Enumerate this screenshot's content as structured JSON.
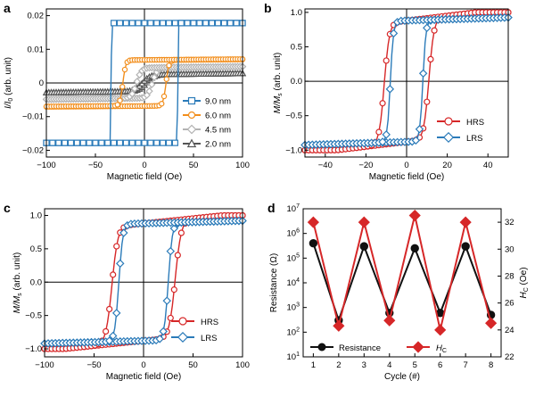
{
  "chart_data": [
    {
      "panel": "a",
      "type": "line",
      "xlabel": "Magnetic field (Oe)",
      "ylabel_main": "I/I",
      "ylabel_sub": "0",
      "ylabel_unit": " (arb. unit)",
      "xlim": [
        -100,
        100
      ],
      "ylim": [
        -0.022,
        0.022
      ],
      "xticks": [
        -100,
        -50,
        0,
        50,
        100
      ],
      "yticks": [
        -0.02,
        -0.01,
        0,
        0.01,
        0.02
      ],
      "ytick_labels": [
        "−0.02",
        "−0.01",
        "0",
        "0.01",
        "0.02"
      ],
      "zero_lines": true,
      "legend_position": "bottom-right",
      "series": [
        {
          "name": "9.0 nm",
          "color": "#2b7bb9",
          "marker": "square",
          "hc": 34,
          "sat": 0.0178,
          "shape": "square",
          "width": 0.5
        },
        {
          "name": "6.0 nm",
          "color": "#f28e1c",
          "marker": "circle",
          "hc": 22,
          "sat": 0.0068,
          "shape": "soft",
          "width": 3
        },
        {
          "name": "4.5 nm",
          "color": "#b3b3b3",
          "marker": "diamond",
          "hc": 8,
          "sat": 0.0045,
          "shape": "soft",
          "width": 5
        },
        {
          "name": "2.0 nm",
          "color": "#555555",
          "marker": "triangle",
          "hc": 2,
          "sat": 0.0025,
          "shape": "soft",
          "width": 8
        }
      ]
    },
    {
      "panel": "b",
      "type": "line",
      "xlabel": "Magnetic field (Oe)",
      "ylabel_main": "M/M",
      "ylabel_sub": "s",
      "ylabel_unit": " (arb. unit)",
      "xlim": [
        -50,
        50
      ],
      "ylim": [
        -1.1,
        1.05
      ],
      "xticks": [
        -40,
        -20,
        0,
        20,
        40
      ],
      "yticks": [
        -1.0,
        -0.5,
        0.0,
        0.5,
        1.0
      ],
      "ytick_labels": [
        "−1.0",
        "−0.5",
        "0.0",
        "0.5",
        "1.0"
      ],
      "zero_lines": true,
      "legend_position": "bottom-right",
      "series": [
        {
          "name": "HRS",
          "color": "#d62728",
          "marker": "circle",
          "hc": 11,
          "width": 2.5,
          "slope": 0.0035
        },
        {
          "name": "LRS",
          "color": "#2b7bb9",
          "marker": "diamond",
          "hc": 8,
          "width": 1.5,
          "slope": 0.0009
        }
      ]
    },
    {
      "panel": "c",
      "type": "line",
      "xlabel": "Magnetic field (Oe)",
      "ylabel_main": "M/M",
      "ylabel_sub": "s",
      "ylabel_unit": " (arb. unit)",
      "xlim": [
        -100,
        100
      ],
      "ylim": [
        -1.12,
        1.1
      ],
      "xticks": [
        -100,
        -50,
        0,
        50,
        100
      ],
      "yticks": [
        -1.0,
        -0.5,
        0.0,
        0.5,
        1.0
      ],
      "ytick_labels": [
        "−1.0",
        "−0.5",
        "0.0",
        "0.5",
        "1.0"
      ],
      "zero_lines": true,
      "legend_position": "bottom-right",
      "series": [
        {
          "name": "HRS",
          "color": "#d62728",
          "marker": "circle",
          "hc": 32,
          "width": 6,
          "slope": 0.0015
        },
        {
          "name": "LRS",
          "color": "#2b7bb9",
          "marker": "diamond",
          "hc": 25,
          "width": 4,
          "slope": 0.0004
        }
      ]
    },
    {
      "panel": "d",
      "type": "line",
      "xlabel": "Cycle (#)",
      "ylabel_left": "Resistance (Ω)",
      "ylabel_right_main": "H",
      "ylabel_right_sub": "C",
      "ylabel_right_unit": " (Oe)",
      "xlim": [
        0.6,
        8.4
      ],
      "xticks": [
        1,
        2,
        3,
        4,
        5,
        6,
        7,
        8
      ],
      "y_left_scale": "log",
      "y_left_lim_exp": [
        1,
        7
      ],
      "y_left_ticks_exp": [
        1,
        2,
        3,
        4,
        5,
        6,
        7
      ],
      "y_right_lim": [
        22,
        33
      ],
      "y_right_ticks": [
        22,
        24,
        26,
        28,
        30,
        32
      ],
      "legend_position": "bottom",
      "series": [
        {
          "name": "Resistance",
          "axis": "left",
          "color": "#111111",
          "marker": "circle",
          "x": [
            1,
            2,
            3,
            4,
            5,
            6,
            7,
            8
          ],
          "y": [
            400000,
            300,
            300000,
            600,
            250000,
            600,
            300000,
            500
          ]
        },
        {
          "name": "H",
          "name_sub": "C",
          "axis": "right",
          "color": "#d62728",
          "marker": "diamond",
          "x": [
            1,
            2,
            3,
            4,
            5,
            6,
            7,
            8
          ],
          "y": [
            32,
            24.3,
            32,
            24.7,
            32.5,
            24,
            32,
            24.5
          ]
        }
      ]
    }
  ],
  "panel_letters": {
    "a": "a",
    "b": "b",
    "c": "c",
    "d": "d"
  }
}
